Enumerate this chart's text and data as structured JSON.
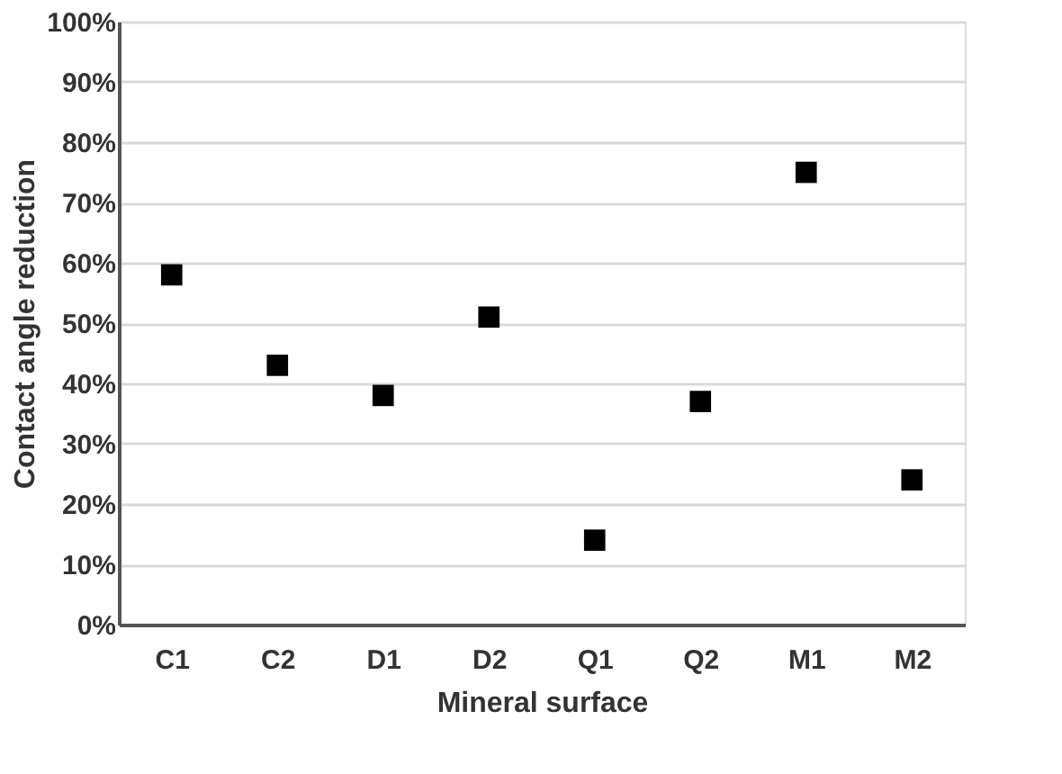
{
  "chart_data": {
    "type": "scatter",
    "xlabel": "Mineral surface",
    "ylabel": "Contact angle reduction",
    "categories": [
      "C1",
      "C2",
      "D1",
      "D2",
      "Q1",
      "Q2",
      "M1",
      "M2"
    ],
    "series": [
      {
        "color": "#000000",
        "values": [
          58,
          43,
          38,
          51,
          14,
          37,
          75,
          24
        ]
      }
    ],
    "ylim": [
      0,
      100
    ],
    "yticks": [
      {
        "value": 0,
        "label": "0%"
      },
      {
        "value": 10,
        "label": "10%"
      },
      {
        "value": 20,
        "label": "20%"
      },
      {
        "value": 30,
        "label": "30%"
      },
      {
        "value": 40,
        "label": "40%"
      },
      {
        "value": 50,
        "label": "50%"
      },
      {
        "value": 60,
        "label": "60%"
      },
      {
        "value": 70,
        "label": "70%"
      },
      {
        "value": 80,
        "label": "80%"
      },
      {
        "value": 90,
        "label": "90%"
      },
      {
        "value": 100,
        "label": "100%"
      }
    ],
    "grid": "y",
    "marker": "square"
  }
}
